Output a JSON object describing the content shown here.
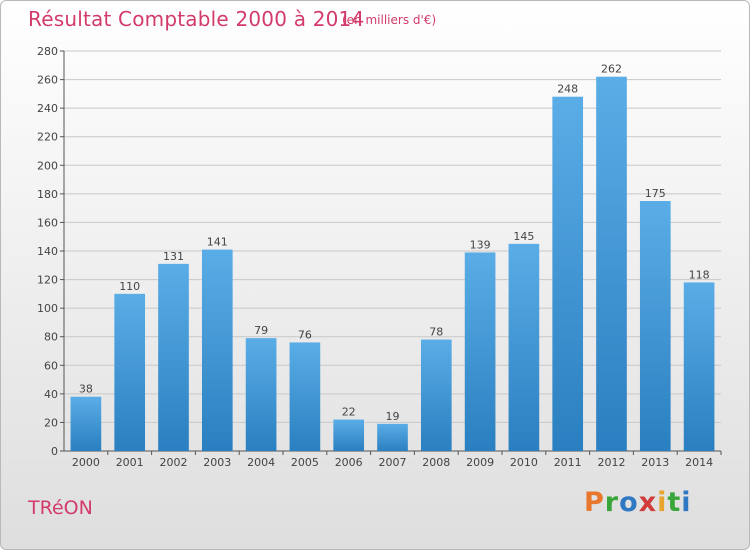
{
  "title": "Résultat Comptable 2000 à 2014",
  "subtitle": "(en milliers d'€)",
  "commune": "TRéON",
  "logo": {
    "letters": [
      "P",
      "r",
      "o",
      "x",
      "i",
      "t",
      "i"
    ],
    "colors": [
      "#e8762d",
      "#3aa63a",
      "#2f78c2",
      "#d23b3b",
      "#e8a52d",
      "#3aa63a",
      "#2f78c2"
    ]
  },
  "colors": {
    "bar_top": "#5aade6",
    "bar_bottom": "#2a7fc0",
    "accent": "#d23b6a"
  },
  "chart_data": {
    "type": "bar",
    "categories": [
      "2000",
      "2001",
      "2002",
      "2003",
      "2004",
      "2005",
      "2006",
      "2007",
      "2008",
      "2009",
      "2010",
      "2011",
      "2012",
      "2013",
      "2014"
    ],
    "values": [
      38,
      110,
      131,
      141,
      79,
      76,
      22,
      19,
      78,
      139,
      145,
      248,
      262,
      175,
      118
    ],
    "ylim": [
      0,
      280
    ],
    "yticks": [
      0,
      20,
      40,
      60,
      80,
      100,
      120,
      140,
      160,
      180,
      200,
      220,
      240,
      260,
      280
    ],
    "grid": true,
    "xlabel": "",
    "ylabel": ""
  }
}
